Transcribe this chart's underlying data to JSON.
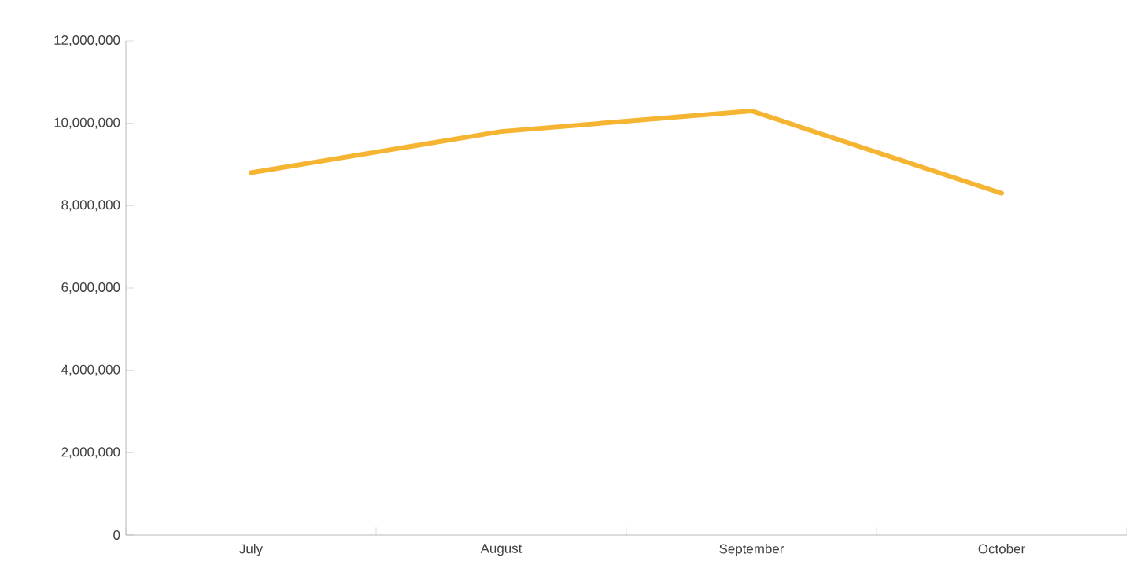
{
  "chart_data": {
    "type": "line",
    "categories": [
      "July",
      "August",
      "September",
      "October"
    ],
    "series": [
      {
        "color": "#f5b431",
        "values": [
          8800000,
          9800000,
          10300000,
          8300000
        ]
      }
    ],
    "ylim": [
      0,
      12000000
    ],
    "yticks": [
      {
        "value": 0,
        "label": "0"
      },
      {
        "value": 2000000,
        "label": "2,000,000"
      },
      {
        "value": 4000000,
        "label": "4,000,000"
      },
      {
        "value": 6000000,
        "label": "6,000,000"
      },
      {
        "value": 8000000,
        "label": "8,000,000"
      },
      {
        "value": 10000000,
        "label": "10,000,000"
      },
      {
        "value": 12000000,
        "label": "12,000,000"
      }
    ],
    "grid": false,
    "legend": false,
    "marker": "none",
    "line_style": "solid"
  }
}
